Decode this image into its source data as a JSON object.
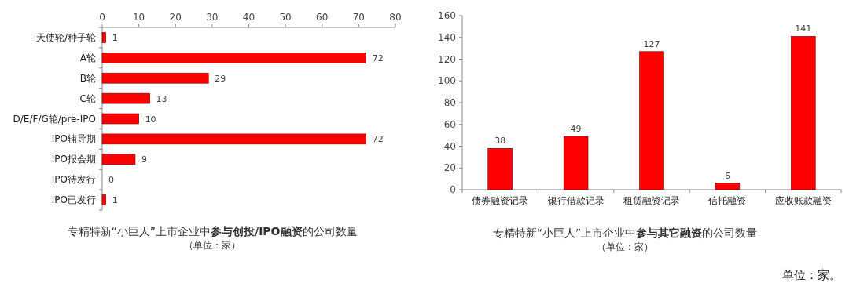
{
  "chart_data": [
    {
      "type": "bar",
      "orientation": "horizontal",
      "title": "专精特新“小巨人”上市企业中**参与创投/IPO融资**的公司数量",
      "subtitle": "（单位：家）",
      "categories": [
        "天使轮/种子轮",
        "A轮",
        "B轮",
        "C轮",
        "D/E/F/G轮/pre-IPO",
        "IPO辅导期",
        "IPO报会期",
        "IPO待发行",
        "IPO已发行"
      ],
      "values": [
        1,
        72,
        29,
        13,
        10,
        72,
        9,
        0,
        1
      ],
      "color": "#ff0000",
      "xlim": [
        0,
        80
      ],
      "xticks": [
        0,
        10,
        20,
        30,
        40,
        50,
        60,
        70,
        80
      ],
      "data_labels": true
    },
    {
      "type": "bar",
      "title": "专精特新“小巨人”上市企业中**参与其它融资**的公司数量",
      "subtitle": "（单位：家）",
      "categories": [
        "债券融资记录",
        "银行借款记录",
        "租赁融资记录",
        "信托融资",
        "应收账款融资"
      ],
      "values": [
        38,
        49,
        127,
        6,
        141
      ],
      "color": "#ff0000",
      "ylim": [
        0,
        160
      ],
      "yticks": [
        0,
        20,
        40,
        60,
        80,
        100,
        120,
        140,
        160
      ],
      "data_labels": true,
      "annotations": [
        "单位：家。"
      ]
    }
  ]
}
